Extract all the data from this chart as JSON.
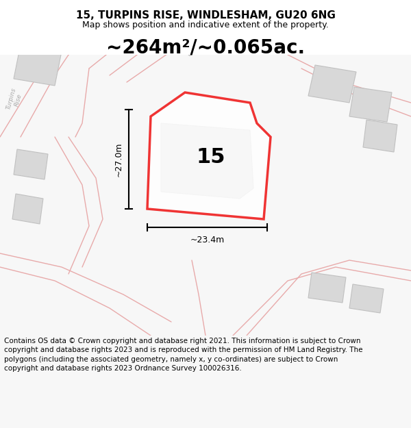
{
  "title": "15, TURPINS RISE, WINDLESHAM, GU20 6NG",
  "subtitle": "Map shows position and indicative extent of the property.",
  "area_text": "~264m²/~0.065ac.",
  "label_15": "15",
  "dim_width": "~23.4m",
  "dim_height": "~27.0m",
  "road_label_diag": "Turpins Rise",
  "road_label_left": "Turpins\nRise",
  "copyright_text": "Contains OS data © Crown copyright and database right 2021. This information is subject to Crown copyright and database rights 2023 and is reproduced with the permission of HM Land Registry. The polygons (including the associated geometry, namely x, y co-ordinates) are subject to Crown copyright and database rights 2023 Ordnance Survey 100026316.",
  "bg_color": "#f7f7f7",
  "map_bg": "#f0efef",
  "plot_color": "#ee1111",
  "dim_color": "#222222",
  "title_fontsize": 11,
  "subtitle_fontsize": 9,
  "area_fontsize": 20,
  "label_fontsize": 22,
  "dim_fontsize": 9,
  "copyright_fontsize": 7.5,
  "road_color": "#f0b8b8",
  "building_fill": "#d8d8d8",
  "building_edge": "#c0c0c0",
  "road_line_color": "#e8aaaa"
}
